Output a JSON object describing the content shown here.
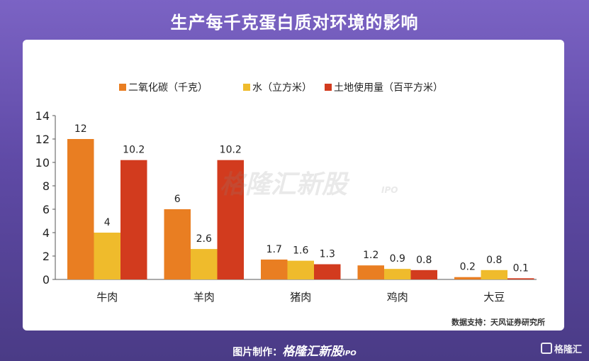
{
  "title": "生产每千克蛋白质对环境的影响",
  "source": "数据支持：天风证券研究所",
  "watermark": "格隆汇新股",
  "watermark_sub": "IPO",
  "footer": {
    "credit_label": "图片制作：",
    "credit_brand": "格隆汇新股",
    "credit_sub": "IPO",
    "corner_logo": "格隆汇"
  },
  "colors": {
    "co2": "#e97e22",
    "water": "#efbb2c",
    "land": "#d23b1e",
    "axis": "#555555",
    "text": "#222222"
  },
  "chart_data": {
    "type": "bar",
    "categories": [
      "牛肉",
      "羊肉",
      "猪肉",
      "鸡肉",
      "大豆"
    ],
    "series": [
      {
        "name": "二氧化碳（千克）",
        "values": [
          12,
          6,
          1.7,
          1.2,
          0.2
        ]
      },
      {
        "name": "水（立方米）",
        "values": [
          4,
          2.6,
          1.6,
          0.9,
          0.8
        ]
      },
      {
        "name": "土地使用量（百平方米）",
        "values": [
          10.2,
          10.2,
          1.3,
          0.8,
          0.1
        ]
      }
    ],
    "ylim": [
      0,
      14
    ],
    "yticks": [
      0,
      2,
      4,
      6,
      8,
      10,
      12,
      14
    ],
    "legend": "top-center",
    "grid": false
  }
}
